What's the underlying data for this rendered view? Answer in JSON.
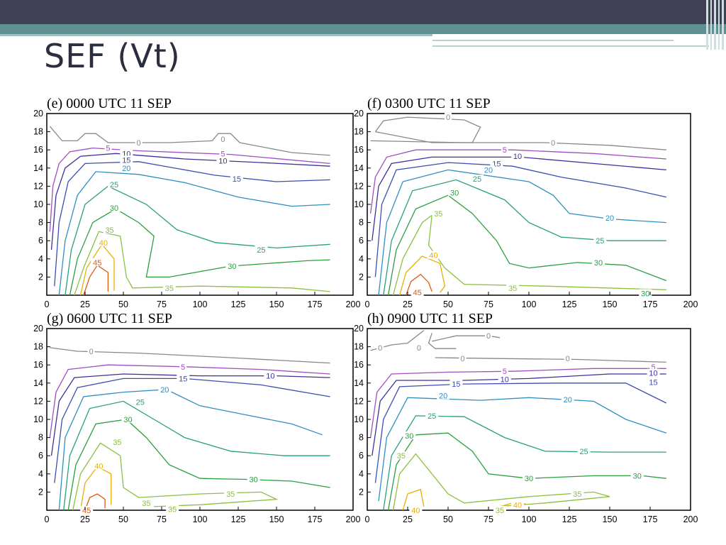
{
  "slide": {
    "title": "SEF (Vt)"
  },
  "colors": {
    "c0": "#888888",
    "c5": "#a04ec0",
    "c10": "#3f2f9a",
    "c15": "#3a4fb0",
    "c20": "#2f8fc0",
    "c25": "#2aa07a",
    "c30": "#2aa040",
    "c35": "#8cc040",
    "c40": "#e6b000",
    "c45": "#e05a10"
  },
  "chart_data": [
    {
      "type": "contour",
      "title": "(e)  0000 UTC 11 SEP",
      "xlim": [
        0,
        200
      ],
      "ylim": [
        0,
        20
      ],
      "xticks": [
        "0",
        "25",
        "50",
        "75",
        "100",
        "125",
        "150",
        "175",
        "200"
      ],
      "yticks": [
        "2",
        "4",
        "6",
        "8",
        "10",
        "12",
        "14",
        "16",
        "18",
        "20"
      ],
      "contour_labels": [
        {
          "text": "0",
          "x": 60,
          "y": 16.8,
          "c": "c0"
        },
        {
          "text": "0",
          "x": 115,
          "y": 17.2,
          "c": "c0"
        },
        {
          "text": "5",
          "x": 40,
          "y": 16.2,
          "c": "c5"
        },
        {
          "text": "5",
          "x": 115,
          "y": 15.6,
          "c": "c5"
        },
        {
          "text": "10",
          "x": 52,
          "y": 15.6,
          "c": "c10"
        },
        {
          "text": "10",
          "x": 115,
          "y": 14.8,
          "c": "c10"
        },
        {
          "text": "15",
          "x": 52,
          "y": 14.9,
          "c": "c15"
        },
        {
          "text": "15",
          "x": 124,
          "y": 12.8,
          "c": "c15"
        },
        {
          "text": "20",
          "x": 52,
          "y": 14.0,
          "c": "c20"
        },
        {
          "text": "25",
          "x": 44,
          "y": 12.2,
          "c": "c25"
        },
        {
          "text": "25",
          "x": 140,
          "y": 5.0,
          "c": "c25"
        },
        {
          "text": "30",
          "x": 44,
          "y": 9.6,
          "c": "c30"
        },
        {
          "text": "30",
          "x": 121,
          "y": 3.2,
          "c": "c30"
        },
        {
          "text": "35",
          "x": 41,
          "y": 7.2,
          "c": "c35"
        },
        {
          "text": "35",
          "x": 80,
          "y": 0.8,
          "c": "c35"
        },
        {
          "text": "40",
          "x": 37,
          "y": 5.8,
          "c": "c40"
        },
        {
          "text": "45",
          "x": 33,
          "y": 3.6,
          "c": "c45"
        }
      ]
    },
    {
      "type": "contour",
      "title": "(f)  0300 UTC 11 SEP",
      "xlim": [
        0,
        200
      ],
      "ylim": [
        0,
        20
      ],
      "xticks": [
        "0",
        "25",
        "50",
        "75",
        "100",
        "125",
        "150",
        "175",
        "200"
      ],
      "yticks": [
        "2",
        "4",
        "6",
        "8",
        "10",
        "12",
        "14",
        "16",
        "18",
        "20"
      ],
      "contour_labels": [
        {
          "text": "0",
          "x": 50,
          "y": 19.6,
          "c": "c0"
        },
        {
          "text": "0",
          "x": 115,
          "y": 16.8,
          "c": "c0"
        },
        {
          "text": "5",
          "x": 85,
          "y": 16.0,
          "c": "c5"
        },
        {
          "text": "10",
          "x": 93,
          "y": 15.3,
          "c": "c10"
        },
        {
          "text": "15",
          "x": 80,
          "y": 14.5,
          "c": "c15"
        },
        {
          "text": "20",
          "x": 75,
          "y": 13.8,
          "c": "c20"
        },
        {
          "text": "20",
          "x": 150,
          "y": 8.5,
          "c": "c20"
        },
        {
          "text": "25",
          "x": 68,
          "y": 12.8,
          "c": "c25"
        },
        {
          "text": "25",
          "x": 144,
          "y": 6.0,
          "c": "c25"
        },
        {
          "text": "30",
          "x": 54,
          "y": 11.3,
          "c": "c30"
        },
        {
          "text": "30",
          "x": 143,
          "y": 3.6,
          "c": "c30"
        },
        {
          "text": "30",
          "x": 172,
          "y": 0.2,
          "c": "c30"
        },
        {
          "text": "35",
          "x": 44,
          "y": 9.0,
          "c": "c35"
        },
        {
          "text": "35",
          "x": 90,
          "y": 0.8,
          "c": "c35"
        },
        {
          "text": "40",
          "x": 41,
          "y": 4.4,
          "c": "c40"
        },
        {
          "text": "45",
          "x": 31,
          "y": 0.3,
          "c": "c45"
        }
      ]
    },
    {
      "type": "contour",
      "title": "(g)  0600 UTC 11 SEP",
      "xlim": [
        0,
        200
      ],
      "ylim": [
        0,
        20
      ],
      "xticks": [
        "0",
        "25",
        "50",
        "75",
        "100",
        "125",
        "150",
        "175",
        "200"
      ],
      "yticks": [
        "2",
        "4",
        "6",
        "8",
        "10",
        "12",
        "14",
        "16",
        "18",
        "20"
      ],
      "contour_labels": [
        {
          "text": "0",
          "x": 29,
          "y": 17.5,
          "c": "c0"
        },
        {
          "text": "5",
          "x": 89,
          "y": 15.8,
          "c": "c5"
        },
        {
          "text": "10",
          "x": 146,
          "y": 14.8,
          "c": "c10"
        },
        {
          "text": "15",
          "x": 89,
          "y": 14.5,
          "c": "c15"
        },
        {
          "text": "20",
          "x": 77,
          "y": 13.3,
          "c": "c20"
        },
        {
          "text": "25",
          "x": 61,
          "y": 11.9,
          "c": "c25"
        },
        {
          "text": "30",
          "x": 53,
          "y": 10.0,
          "c": "c30"
        },
        {
          "text": "30",
          "x": 135,
          "y": 3.4,
          "c": "c30"
        },
        {
          "text": "35",
          "x": 46,
          "y": 7.5,
          "c": "c35"
        },
        {
          "text": "35",
          "x": 120,
          "y": 1.8,
          "c": "c35"
        },
        {
          "text": "35",
          "x": 65,
          "y": 0.8,
          "c": "c35"
        },
        {
          "text": "35",
          "x": 82,
          "y": 0.1,
          "c": "c35"
        },
        {
          "text": "40",
          "x": 34,
          "y": 4.9,
          "c": "c40"
        },
        {
          "text": "45",
          "x": 26,
          "y": 0.0,
          "c": "c45"
        }
      ]
    },
    {
      "type": "contour",
      "title": "(h)  0900 UTC 11 SEP",
      "xlim": [
        0,
        200
      ],
      "ylim": [
        0,
        20
      ],
      "xticks": [
        "0",
        "25",
        "50",
        "75",
        "100",
        "125",
        "150",
        "175",
        "200"
      ],
      "yticks": [
        "2",
        "4",
        "6",
        "8",
        "10",
        "12",
        "14",
        "16",
        "18",
        "20"
      ],
      "contour_labels": [
        {
          "text": "0",
          "x": 75,
          "y": 19.2,
          "c": "c0"
        },
        {
          "text": "0",
          "x": 8,
          "y": 17.9,
          "c": "c0"
        },
        {
          "text": "0",
          "x": 32,
          "y": 17.9,
          "c": "c0"
        },
        {
          "text": "0",
          "x": 59,
          "y": 16.7,
          "c": "c0"
        },
        {
          "text": "0",
          "x": 124,
          "y": 16.7,
          "c": "c0"
        },
        {
          "text": "5",
          "x": 85,
          "y": 15.3,
          "c": "c5"
        },
        {
          "text": "5",
          "x": 177,
          "y": 15.8,
          "c": "c5"
        },
        {
          "text": "10",
          "x": 85,
          "y": 14.4,
          "c": "c10"
        },
        {
          "text": "10",
          "x": 177,
          "y": 15.1,
          "c": "c10"
        },
        {
          "text": "15",
          "x": 55,
          "y": 13.9,
          "c": "c15"
        },
        {
          "text": "15",
          "x": 177,
          "y": 14.1,
          "c": "c15"
        },
        {
          "text": "20",
          "x": 47,
          "y": 12.6,
          "c": "c20"
        },
        {
          "text": "20",
          "x": 124,
          "y": 12.2,
          "c": "c20"
        },
        {
          "text": "25",
          "x": 40,
          "y": 10.4,
          "c": "c25"
        },
        {
          "text": "25",
          "x": 134,
          "y": 6.5,
          "c": "c25"
        },
        {
          "text": "30",
          "x": 26,
          "y": 8.2,
          "c": "c30"
        },
        {
          "text": "30",
          "x": 100,
          "y": 3.5,
          "c": "c30"
        },
        {
          "text": "30",
          "x": 167,
          "y": 3.8,
          "c": "c30"
        },
        {
          "text": "35",
          "x": 21,
          "y": 6.0,
          "c": "c35"
        },
        {
          "text": "35",
          "x": 130,
          "y": 1.8,
          "c": "c35"
        },
        {
          "text": "40",
          "x": 93,
          "y": 0.6,
          "c": "c40"
        },
        {
          "text": "40",
          "x": 30,
          "y": 0.0,
          "c": "c40"
        },
        {
          "text": "35",
          "x": 82,
          "y": 0.0,
          "c": "c35"
        }
      ]
    }
  ]
}
